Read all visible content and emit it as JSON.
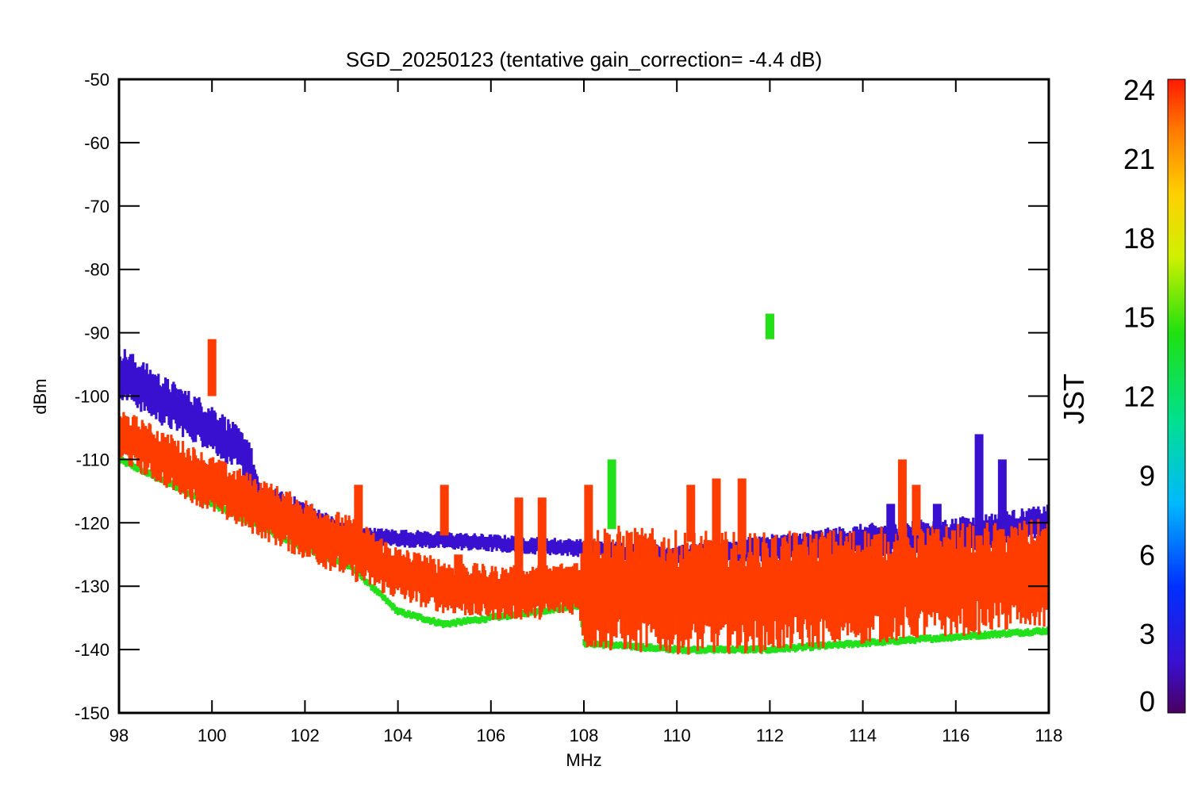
{
  "chart_data": {
    "type": "scatter",
    "title": "SGD_20250123 (tentative gain_correction= -4.4 dB)",
    "xlabel": "MHz",
    "ylabel": "dBm",
    "xlim": [
      98,
      118
    ],
    "ylim": [
      -150,
      -50
    ],
    "xticks": [
      "98",
      "100",
      "102",
      "104",
      "106",
      "108",
      "110",
      "112",
      "114",
      "116",
      "118"
    ],
    "yticks": [
      "-50",
      "-60",
      "-70",
      "-80",
      "-90",
      "-100",
      "-110",
      "-120",
      "-130",
      "-140",
      "-150"
    ],
    "grid": false,
    "colorbar": {
      "label": "JST",
      "range": [
        0,
        24
      ],
      "ticks": [
        "0",
        "3",
        "6",
        "9",
        "12",
        "15",
        "18",
        "21",
        "24"
      ],
      "colormap": "rainbow"
    },
    "series": [
      {
        "color_value": 23,
        "color": "#ff3c00",
        "baseline": [
          [
            98,
            -106
          ],
          [
            100,
            -114
          ],
          [
            102,
            -121
          ],
          [
            103,
            -124
          ],
          [
            104,
            -128
          ],
          [
            105,
            -130
          ],
          [
            106,
            -131
          ],
          [
            107,
            -131
          ],
          [
            107.9,
            -130
          ],
          [
            108,
            -130
          ],
          [
            110,
            -131
          ],
          [
            112,
            -131
          ],
          [
            114,
            -130
          ],
          [
            116,
            -129
          ],
          [
            118,
            -128
          ]
        ],
        "band_width": [
          [
            98,
            6
          ],
          [
            103,
            7
          ],
          [
            104,
            6
          ],
          [
            107.9,
            6
          ],
          [
            108,
            14
          ],
          [
            118,
            12
          ]
        ]
      },
      {
        "color_value": 2,
        "color": "#3a10d0",
        "baseline": [
          [
            98,
            -96
          ],
          [
            99,
            -101
          ],
          [
            100,
            -105
          ],
          [
            100.8,
            -110
          ],
          [
            101,
            -117
          ],
          [
            102,
            -119
          ],
          [
            103,
            -122
          ],
          [
            108,
            -124
          ],
          [
            110,
            -125
          ],
          [
            112,
            -124
          ],
          [
            114,
            -123
          ],
          [
            116,
            -122
          ],
          [
            118,
            -120
          ]
        ],
        "band_width": [
          [
            98,
            6
          ],
          [
            101,
            5
          ],
          [
            103,
            2
          ],
          [
            110,
            2
          ],
          [
            114,
            4
          ],
          [
            118,
            4
          ]
        ]
      },
      {
        "color_value": 14,
        "color": "#22e01a",
        "baseline": [
          [
            98,
            -110
          ],
          [
            100,
            -117
          ],
          [
            102,
            -124
          ],
          [
            103,
            -127
          ],
          [
            104,
            -134
          ],
          [
            105,
            -136
          ],
          [
            106,
            -135
          ],
          [
            107,
            -134
          ],
          [
            107.9,
            -133
          ],
          [
            108,
            -139
          ],
          [
            110,
            -140
          ],
          [
            112,
            -140
          ],
          [
            114,
            -139
          ],
          [
            116,
            -138
          ],
          [
            118,
            -137
          ]
        ],
        "band_width": [
          [
            98,
            1
          ],
          [
            118,
            1
          ]
        ]
      }
    ],
    "spikes": [
      {
        "x": 100,
        "top": -91,
        "bottom": -100,
        "color_value": 23
      },
      {
        "x": 103.15,
        "top": -114,
        "bottom": -124,
        "color_value": 23
      },
      {
        "x": 105,
        "top": -114,
        "bottom": -122,
        "color_value": 23
      },
      {
        "x": 105.3,
        "top": -125,
        "bottom": -131,
        "color_value": 23
      },
      {
        "x": 106.6,
        "top": -116,
        "bottom": -130,
        "color_value": 23
      },
      {
        "x": 107.1,
        "top": -116,
        "bottom": -132,
        "color_value": 23
      },
      {
        "x": 108.1,
        "top": -114,
        "bottom": -129,
        "color_value": 23
      },
      {
        "x": 108.6,
        "top": -110,
        "bottom": -121,
        "color_value": 14
      },
      {
        "x": 110.3,
        "top": -114,
        "bottom": -123,
        "color_value": 23
      },
      {
        "x": 110.85,
        "top": -113,
        "bottom": -125,
        "color_value": 23
      },
      {
        "x": 111.4,
        "top": -113,
        "bottom": -125,
        "color_value": 23
      },
      {
        "x": 112,
        "top": -87,
        "bottom": -91,
        "color_value": 23
      },
      {
        "x": 112,
        "top": -87,
        "bottom": -91,
        "color_value": 14
      },
      {
        "x": 114.85,
        "top": -110,
        "bottom": -122,
        "color_value": 23
      },
      {
        "x": 115.15,
        "top": -114,
        "bottom": -122,
        "color_value": 23
      },
      {
        "x": 116.5,
        "top": -106,
        "bottom": -122,
        "color_value": 2
      },
      {
        "x": 117,
        "top": -110,
        "bottom": -121,
        "color_value": 2
      },
      {
        "x": 115.6,
        "top": -117,
        "bottom": -121,
        "color_value": 2
      },
      {
        "x": 114.6,
        "top": -117,
        "bottom": -123,
        "color_value": 2
      }
    ]
  }
}
